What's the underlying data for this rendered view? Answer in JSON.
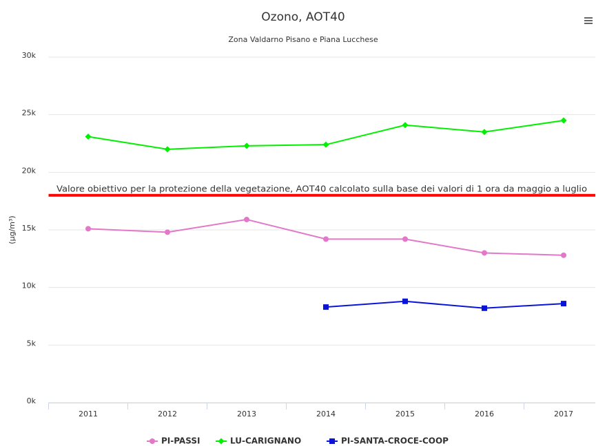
{
  "chart_data": {
    "type": "line",
    "title": "Ozono, AOT40",
    "subtitle": "Zona Valdarno Pisano e Piana Lucchese",
    "y_axis_label": "(µg/m³)",
    "categories": [
      "2011",
      "2012",
      "2013",
      "2014",
      "2015",
      "2016",
      "2017"
    ],
    "series": [
      {
        "name": "PI-PASSI",
        "color": "#e377c8",
        "marker": "circle",
        "values": [
          15100,
          14800,
          15900,
          14200,
          14200,
          13000,
          12800
        ]
      },
      {
        "name": "LU-CARIGNANO",
        "color": "#00f000",
        "marker": "diamond",
        "values": [
          23100,
          22000,
          22300,
          22400,
          24100,
          23500,
          24500
        ]
      },
      {
        "name": "PI-SANTA-CROCE-COOP",
        "color": "#0a14d8",
        "marker": "square",
        "values": [
          null,
          null,
          null,
          8300,
          8800,
          8200,
          8600
        ]
      }
    ],
    "ylim": [
      0,
      30000
    ],
    "yticks": [
      {
        "value": 0,
        "label": "0k"
      },
      {
        "value": 5000,
        "label": "5k"
      },
      {
        "value": 10000,
        "label": "10k"
      },
      {
        "value": 15000,
        "label": "15k"
      },
      {
        "value": 20000,
        "label": "20k"
      },
      {
        "value": 25000,
        "label": "25k"
      },
      {
        "value": 30000,
        "label": "30k"
      }
    ],
    "grid": true,
    "reference_line": {
      "value": 18000,
      "color": "#ff0000",
      "label": "Valore obiettivo per la protezione della vegetazione, AOT40 calcolato sulla base dei valori di 1 ora da maggio a luglio"
    },
    "legend": "bottom"
  }
}
